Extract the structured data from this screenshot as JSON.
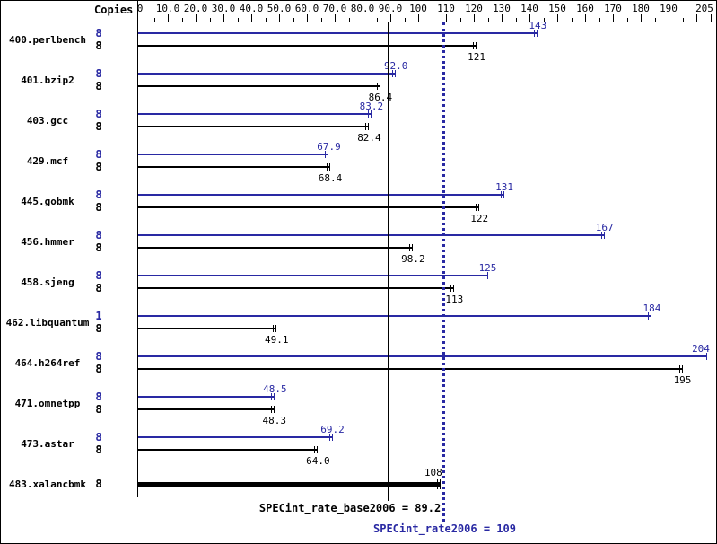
{
  "header": {
    "copies_label": "Copies"
  },
  "colors": {
    "peak": "#2929a3",
    "base": "#000000"
  },
  "footer": {
    "base_label": "SPECint_rate_base2006 = 89.2",
    "peak_label": "SPECint_rate2006 = 109",
    "base_value": 89.2,
    "peak_value": 109
  },
  "chart_data": {
    "type": "bar",
    "title": "SPECint_rate2006 results chart",
    "orientation": "horizontal",
    "legend": [
      "peak (blue)",
      "base (black)"
    ],
    "axis": {
      "min": 0,
      "max": 205,
      "minor_step": 5,
      "labeled_ticks": [
        {
          "v": 0,
          "label": "0"
        },
        {
          "v": 10,
          "label": "10.0"
        },
        {
          "v": 20,
          "label": "20.0"
        },
        {
          "v": 30,
          "label": "30.0"
        },
        {
          "v": 40,
          "label": "40.0"
        },
        {
          "v": 50,
          "label": "50.0"
        },
        {
          "v": 60,
          "label": "60.0"
        },
        {
          "v": 70,
          "label": "70.0"
        },
        {
          "v": 80,
          "label": "80.0"
        },
        {
          "v": 90,
          "label": "90.0"
        },
        {
          "v": 100,
          "label": "100"
        },
        {
          "v": 110,
          "label": "110"
        },
        {
          "v": 120,
          "label": "120"
        },
        {
          "v": 130,
          "label": "130"
        },
        {
          "v": 140,
          "label": "140"
        },
        {
          "v": 150,
          "label": "150"
        },
        {
          "v": 160,
          "label": "160"
        },
        {
          "v": 170,
          "label": "170"
        },
        {
          "v": 180,
          "label": "180"
        },
        {
          "v": 190,
          "label": "190"
        },
        {
          "v": 205,
          "label": "205"
        }
      ]
    },
    "benchmarks": [
      {
        "name": "400.perlbench",
        "peak": {
          "copies": "8",
          "value": 143,
          "text": "143"
        },
        "base": {
          "copies": "8",
          "value": 121,
          "text": "121"
        }
      },
      {
        "name": "401.bzip2",
        "peak": {
          "copies": "8",
          "value": 92.0,
          "text": "92.0"
        },
        "base": {
          "copies": "8",
          "value": 86.4,
          "text": "86.4"
        }
      },
      {
        "name": "403.gcc",
        "peak": {
          "copies": "8",
          "value": 83.2,
          "text": "83.2"
        },
        "base": {
          "copies": "8",
          "value": 82.4,
          "text": "82.4"
        }
      },
      {
        "name": "429.mcf",
        "peak": {
          "copies": "8",
          "value": 67.9,
          "text": "67.9"
        },
        "base": {
          "copies": "8",
          "value": 68.4,
          "text": "68.4"
        }
      },
      {
        "name": "445.gobmk",
        "peak": {
          "copies": "8",
          "value": 131,
          "text": "131"
        },
        "base": {
          "copies": "8",
          "value": 122,
          "text": "122"
        }
      },
      {
        "name": "456.hmmer",
        "peak": {
          "copies": "8",
          "value": 167,
          "text": "167"
        },
        "base": {
          "copies": "8",
          "value": 98.2,
          "text": "98.2"
        }
      },
      {
        "name": "458.sjeng",
        "peak": {
          "copies": "8",
          "value": 125,
          "text": "125"
        },
        "base": {
          "copies": "8",
          "value": 113,
          "text": "113"
        }
      },
      {
        "name": "462.libquantum",
        "peak": {
          "copies": "1",
          "value": 184,
          "text": "184"
        },
        "base": {
          "copies": "8",
          "value": 49.1,
          "text": "49.1"
        }
      },
      {
        "name": "464.h264ref",
        "peak": {
          "copies": "8",
          "value": 204,
          "text": "204"
        },
        "base": {
          "copies": "8",
          "value": 195,
          "text": "195"
        }
      },
      {
        "name": "471.omnetpp",
        "peak": {
          "copies": "8",
          "value": 48.5,
          "text": "48.5"
        },
        "base": {
          "copies": "8",
          "value": 48.3,
          "text": "48.3"
        }
      },
      {
        "name": "473.astar",
        "peak": {
          "copies": "8",
          "value": 69.2,
          "text": "69.2"
        },
        "base": {
          "copies": "8",
          "value": 64.0,
          "text": "64.0"
        }
      },
      {
        "name": "483.xalancbmk",
        "single": true,
        "base": {
          "copies": "8",
          "value": 108,
          "text": "108"
        }
      }
    ]
  }
}
